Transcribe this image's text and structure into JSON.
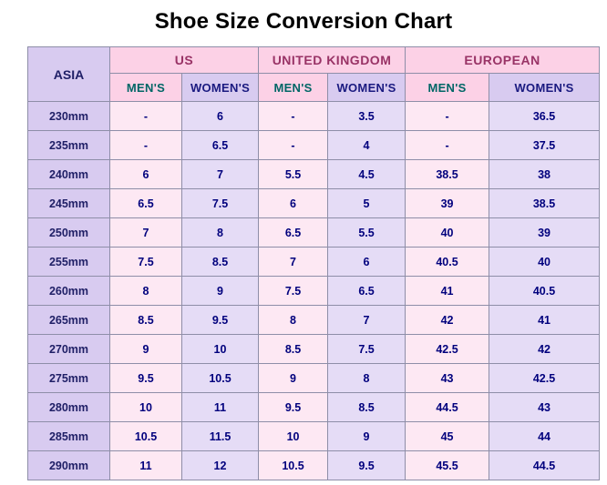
{
  "title": "Shoe Size Conversion Chart",
  "table": {
    "corner_header": "ASIA",
    "group_headers": [
      "US",
      "UNITED KINGDOM",
      "EUROPEAN"
    ],
    "sub_headers": [
      "MEN'S",
      "WOMEN'S",
      "MEN'S",
      "WOMEN'S",
      "MEN'S",
      "WOMEN'S"
    ],
    "rows": [
      {
        "label": "230mm",
        "cells": [
          "-",
          "6",
          "-",
          "3.5",
          "-",
          "36.5"
        ]
      },
      {
        "label": "235mm",
        "cells": [
          "-",
          "6.5",
          "-",
          "4",
          "-",
          "37.5"
        ]
      },
      {
        "label": "240mm",
        "cells": [
          "6",
          "7",
          "5.5",
          "4.5",
          "38.5",
          "38"
        ]
      },
      {
        "label": "245mm",
        "cells": [
          "6.5",
          "7.5",
          "6",
          "5",
          "39",
          "38.5"
        ]
      },
      {
        "label": "250mm",
        "cells": [
          "7",
          "8",
          "6.5",
          "5.5",
          "40",
          "39"
        ]
      },
      {
        "label": "255mm",
        "cells": [
          "7.5",
          "8.5",
          "7",
          "6",
          "40.5",
          "40"
        ]
      },
      {
        "label": "260mm",
        "cells": [
          "8",
          "9",
          "7.5",
          "6.5",
          "41",
          "40.5"
        ]
      },
      {
        "label": "265mm",
        "cells": [
          "8.5",
          "9.5",
          "8",
          "7",
          "42",
          "41"
        ]
      },
      {
        "label": "270mm",
        "cells": [
          "9",
          "10",
          "8.5",
          "7.5",
          "42.5",
          "42"
        ]
      },
      {
        "label": "275mm",
        "cells": [
          "9.5",
          "10.5",
          "9",
          "8",
          "43",
          "42.5"
        ]
      },
      {
        "label": "280mm",
        "cells": [
          "10",
          "11",
          "9.5",
          "8.5",
          "44.5",
          "43"
        ]
      },
      {
        "label": "285mm",
        "cells": [
          "10.5",
          "11.5",
          "10",
          "9",
          "45",
          "44"
        ]
      },
      {
        "label": "290mm",
        "cells": [
          "11",
          "12",
          "10.5",
          "9.5",
          "45.5",
          "44.5"
        ]
      }
    ]
  },
  "colors": {
    "title_text": "#000000",
    "lavender_header": "#d8cbf0",
    "pink_header": "#fcd1e6",
    "men_cell": "#fde8f3",
    "women_cell": "#e5dcf6",
    "asia_text": "#1f1f66",
    "group_text": "#993366",
    "mens_text": "#006666",
    "womens_text": "#1a1a80",
    "value_text": "#00007d",
    "border": "#8e8ea8"
  },
  "chart_data": {
    "type": "table",
    "title": "Shoe Size Conversion Chart",
    "columns": [
      "ASIA",
      "US MEN'S",
      "US WOMEN'S",
      "UNITED KINGDOM MEN'S",
      "UNITED KINGDOM WOMEN'S",
      "EUROPEAN MEN'S",
      "EUROPEAN WOMEN'S"
    ],
    "rows": [
      [
        "230mm",
        "-",
        "6",
        "-",
        "3.5",
        "-",
        "36.5"
      ],
      [
        "235mm",
        "-",
        "6.5",
        "-",
        "4",
        "-",
        "37.5"
      ],
      [
        "240mm",
        "6",
        "7",
        "5.5",
        "4.5",
        "38.5",
        "38"
      ],
      [
        "245mm",
        "6.5",
        "7.5",
        "6",
        "5",
        "39",
        "38.5"
      ],
      [
        "250mm",
        "7",
        "8",
        "6.5",
        "5.5",
        "40",
        "39"
      ],
      [
        "255mm",
        "7.5",
        "8.5",
        "7",
        "6",
        "40.5",
        "40"
      ],
      [
        "260mm",
        "8",
        "9",
        "7.5",
        "6.5",
        "41",
        "40.5"
      ],
      [
        "265mm",
        "8.5",
        "9.5",
        "8",
        "7",
        "42",
        "41"
      ],
      [
        "270mm",
        "9",
        "10",
        "8.5",
        "7.5",
        "42.5",
        "42"
      ],
      [
        "275mm",
        "9.5",
        "10.5",
        "9",
        "8",
        "43",
        "42.5"
      ],
      [
        "280mm",
        "10",
        "11",
        "9.5",
        "8.5",
        "44.5",
        "43"
      ],
      [
        "285mm",
        "10.5",
        "11.5",
        "10",
        "9",
        "45",
        "44"
      ],
      [
        "290mm",
        "11",
        "12",
        "10.5",
        "9.5",
        "45.5",
        "44.5"
      ]
    ]
  }
}
